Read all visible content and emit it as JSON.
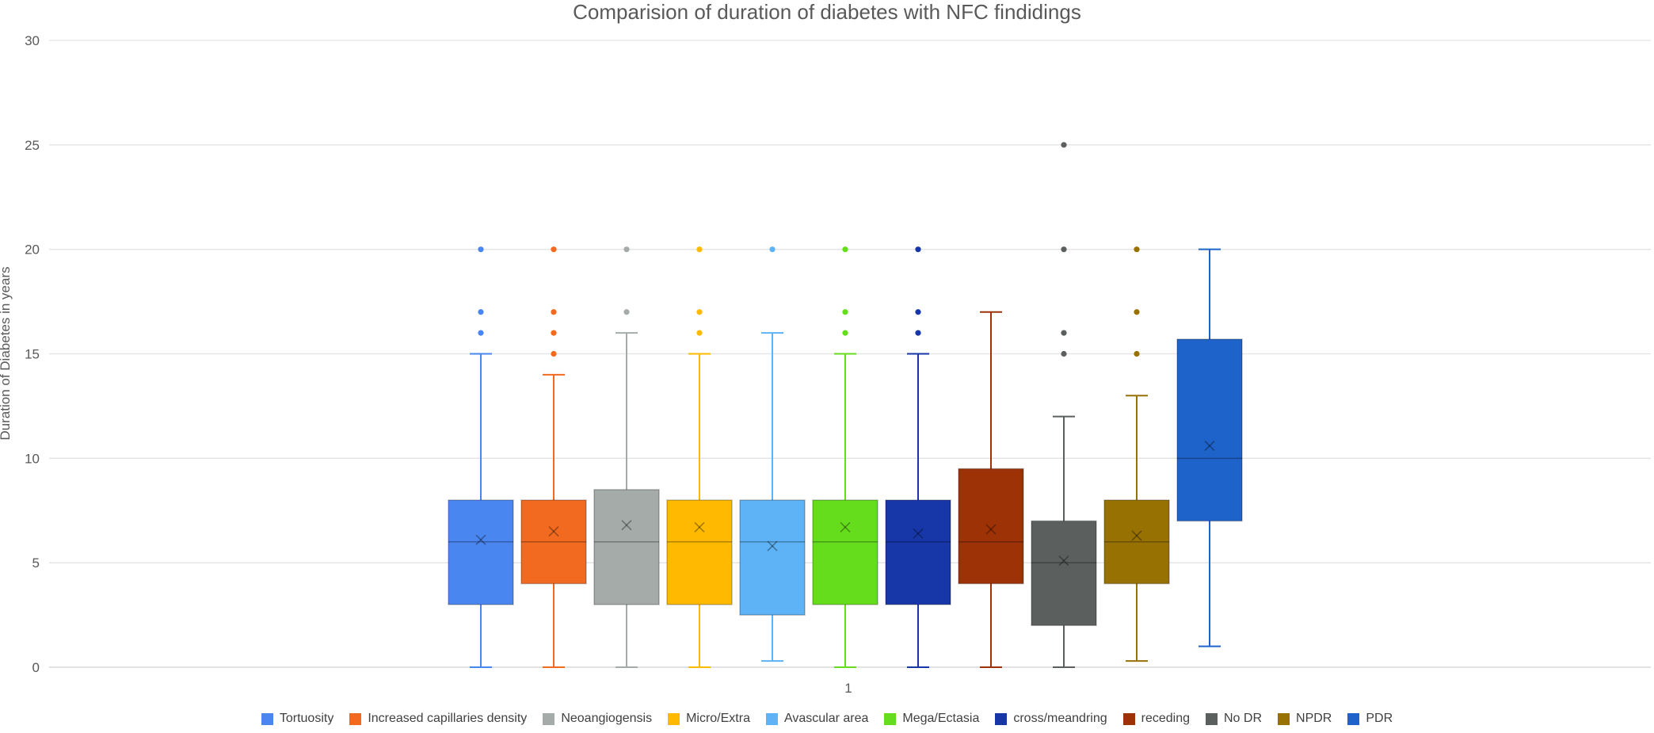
{
  "chart_data": {
    "type": "boxplot",
    "title": "Comparision of duration of diabetes with NFC findidings",
    "xlabel": "",
    "ylabel": "Duration of Diabetes in years",
    "category": "1",
    "ylim": [
      0,
      30
    ],
    "yticks": [
      0,
      5,
      10,
      15,
      20,
      25,
      30
    ],
    "grid": true,
    "legend_position": "bottom",
    "series": [
      {
        "name": "Tortuosity",
        "color": "#4a86f0",
        "min": 0,
        "q1": 3,
        "median": 6,
        "q3": 8,
        "max": 15,
        "mean": 6.1,
        "outliers": [
          16,
          17,
          20
        ]
      },
      {
        "name": "Increased capillaries density",
        "color": "#f26a20",
        "min": 0,
        "q1": 4,
        "median": 6,
        "q3": 8,
        "max": 14,
        "mean": 6.5,
        "outliers": [
          15,
          16,
          17,
          20
        ]
      },
      {
        "name": "Neoangiogensis",
        "color": "#a5aba8",
        "min": 0,
        "q1": 3,
        "median": 6,
        "q3": 8.5,
        "max": 16,
        "mean": 6.8,
        "outliers": [
          17,
          20
        ]
      },
      {
        "name": "Micro/Extra",
        "color": "#ffba00",
        "min": 0,
        "q1": 3,
        "median": 6,
        "q3": 8,
        "max": 15,
        "mean": 6.7,
        "outliers": [
          16,
          17,
          20
        ]
      },
      {
        "name": "Avascular area",
        "color": "#5db3f5",
        "min": 0.3,
        "q1": 2.5,
        "median": 6,
        "q3": 8,
        "max": 16,
        "mean": 5.8,
        "outliers": [
          20
        ]
      },
      {
        "name": "Mega/Ectasia",
        "color": "#66dd1c",
        "min": 0,
        "q1": 3,
        "median": 6,
        "q3": 8,
        "max": 15,
        "mean": 6.7,
        "outliers": [
          16,
          17,
          20
        ]
      },
      {
        "name": "cross/meandring",
        "color": "#1737a8",
        "min": 0,
        "q1": 3,
        "median": 6,
        "q3": 8,
        "max": 15,
        "mean": 6.4,
        "outliers": [
          16,
          17,
          20
        ]
      },
      {
        "name": "receding",
        "color": "#9e3207",
        "min": 0,
        "q1": 4,
        "median": 6,
        "q3": 9.5,
        "max": 17,
        "mean": 6.6,
        "outliers": []
      },
      {
        "name": "No DR",
        "color": "#5b605e",
        "min": 0,
        "q1": 2,
        "median": 5,
        "q3": 7,
        "max": 12,
        "mean": 5.1,
        "outliers": [
          15,
          16,
          20,
          25
        ]
      },
      {
        "name": "NPDR",
        "color": "#977102",
        "min": 0.3,
        "q1": 4,
        "median": 6,
        "q3": 8,
        "max": 13,
        "mean": 6.3,
        "outliers": [
          15,
          17,
          20
        ]
      },
      {
        "name": "PDR",
        "color": "#1e63c9",
        "min": 1,
        "q1": 7,
        "median": 10,
        "q3": 15.7,
        "max": 20,
        "mean": 10.6,
        "outliers": []
      }
    ]
  }
}
